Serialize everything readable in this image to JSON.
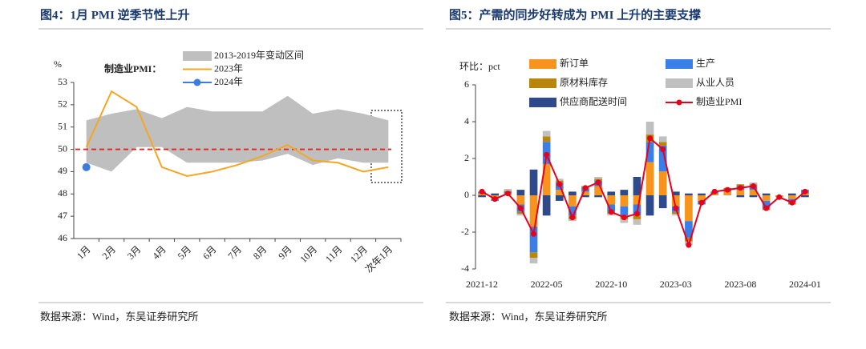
{
  "chart_data": [
    {
      "type": "line",
      "title": "图4：1月 PMI 逆季节性上升",
      "y_label": "%",
      "legend_title": "制造业PMI：",
      "source": "数据来源：Wind，东吴证券研究所",
      "categories": [
        "1月",
        "2月",
        "3月",
        "4月",
        "5月",
        "6月",
        "7月",
        "8月",
        "9月",
        "10月",
        "11月",
        "12月",
        "次年1月"
      ],
      "ylim": [
        46,
        53
      ],
      "yticks": [
        46,
        47,
        48,
        49,
        50,
        51,
        52,
        53
      ],
      "reference_line": 50,
      "reference_color": "#e8231f",
      "series": [
        {
          "name": "2013-2019年变动区间",
          "color": "#bfbfbf",
          "kind": "band",
          "high": [
            51.3,
            51.6,
            51.8,
            51.4,
            51.9,
            51.7,
            51.7,
            51.7,
            52.4,
            51.6,
            51.8,
            51.6,
            51.3
          ],
          "low": [
            49.4,
            49.0,
            50.1,
            50.1,
            49.4,
            49.4,
            49.4,
            49.5,
            49.8,
            49.3,
            49.6,
            49.4,
            49.4
          ]
        },
        {
          "name": "2023年",
          "color": "#f5a623",
          "kind": "line",
          "values": [
            50.1,
            52.6,
            51.9,
            49.2,
            48.8,
            49.0,
            49.3,
            49.7,
            50.2,
            49.5,
            49.4,
            49.0,
            49.2
          ]
        },
        {
          "name": "2024年",
          "color": "#3b7ddd",
          "kind": "point",
          "values": [
            49.2,
            null,
            null,
            null,
            null,
            null,
            null,
            null,
            null,
            null,
            null,
            null,
            null
          ]
        }
      ]
    },
    {
      "type": "bar",
      "title": "图5：产需的同步好转成为 PMI 上升的主要支撑",
      "y_label": "环比：pct",
      "source": "数据来源：Wind，东吴证券研究所",
      "stacked": true,
      "categories": [
        "2021-12",
        null,
        null,
        null,
        null,
        "2022-05",
        null,
        null,
        null,
        null,
        "2022-10",
        null,
        null,
        null,
        null,
        "2023-03",
        null,
        null,
        null,
        null,
        "2023-08",
        null,
        null,
        null,
        null,
        "2024-01"
      ],
      "ylim": [
        -4,
        6
      ],
      "yticks": [
        -4,
        -2,
        0,
        2,
        4,
        6
      ],
      "series": [
        {
          "name": "新订单",
          "color": "#f7941d",
          "kind": "bar",
          "values": [
            0.1,
            -0.2,
            0.1,
            -0.5,
            -1.7,
            1.7,
            0.3,
            -0.6,
            0.2,
            0.5,
            -0.5,
            -0.6,
            -0.5,
            1.8,
            1.3,
            -0.6,
            -1.4,
            -0.3,
            0.1,
            0.2,
            0.3,
            0.3,
            -0.3,
            -0.1,
            -0.2,
            0.1
          ]
        },
        {
          "name": "生产",
          "color": "#3a7ee8",
          "kind": "bar",
          "values": [
            0.1,
            -0.1,
            0.1,
            -0.4,
            -1.4,
            1.2,
            0.4,
            -0.5,
            0.2,
            0.3,
            -0.4,
            -0.5,
            -0.6,
            1.1,
            1.4,
            -0.3,
            -0.9,
            -0.2,
            0.1,
            0.1,
            0.2,
            0.2,
            -0.4,
            0,
            -0.2,
            0.2
          ]
        },
        {
          "name": "原材料库存",
          "color": "#b8860b",
          "kind": "bar",
          "values": [
            0,
            0,
            0.05,
            -0.1,
            -0.3,
            0.3,
            0.1,
            -0.2,
            0.1,
            0.1,
            -0.1,
            -0.2,
            -0.2,
            0.4,
            0.2,
            -0.1,
            -0.2,
            0,
            0,
            0.1,
            0.1,
            0.1,
            -0.1,
            0,
            -0.1,
            0
          ]
        },
        {
          "name": "从业人员",
          "color": "#c0c0c0",
          "kind": "bar",
          "values": [
            0,
            0,
            0.1,
            -0.1,
            -0.3,
            0.3,
            0.1,
            -0.1,
            0,
            0.1,
            -0.1,
            -0.2,
            -0.3,
            0.7,
            0.3,
            -0.1,
            -0.2,
            0,
            0,
            0,
            0,
            0.1,
            0,
            0,
            0,
            0
          ]
        },
        {
          "name": "供应商配送时间",
          "color": "#2e4a8a",
          "kind": "bar",
          "values": [
            -0.1,
            0.1,
            0,
            0.3,
            1.4,
            -1.1,
            -0.3,
            0.2,
            -0.1,
            -0.1,
            0.2,
            0.3,
            1.0,
            -1.1,
            -0.7,
            0.2,
            0.1,
            0.1,
            0,
            0,
            -0.1,
            -0.1,
            0.1,
            0,
            0.1,
            -0.1
          ]
        },
        {
          "name": "制造业PMI",
          "color": "#e8001c",
          "kind": "line",
          "values": [
            0.2,
            -0.2,
            0.1,
            -0.7,
            -2.1,
            2.2,
            0.6,
            -1.2,
            0.4,
            0.7,
            -0.9,
            -1.2,
            -1.0,
            3.1,
            2.5,
            -0.7,
            -2.7,
            -0.4,
            0.2,
            0.3,
            0.4,
            0.5,
            -0.7,
            -0.1,
            -0.4,
            0.2
          ]
        }
      ]
    }
  ]
}
